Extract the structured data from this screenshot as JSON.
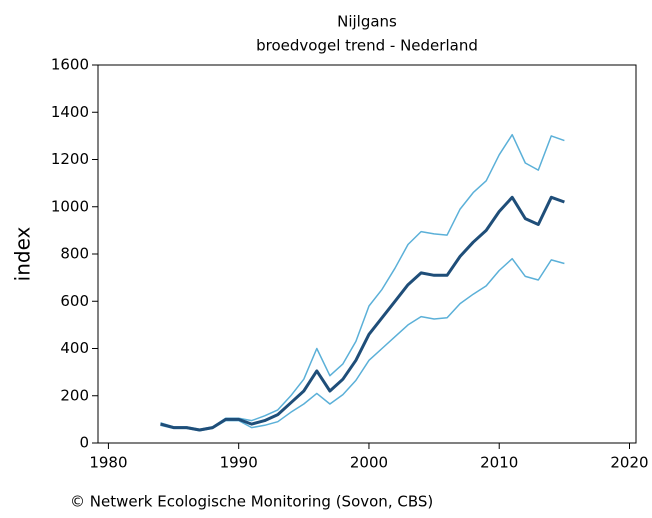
{
  "chart_data": {
    "type": "line",
    "title": "Nijlgans",
    "subtitle": "broedvogel trend - Nederland",
    "y_label": "index",
    "footer": "© Netwerk Ecologische Monitoring (Sovon, CBS)",
    "x": [
      1984,
      1985,
      1986,
      1987,
      1988,
      1989,
      1990,
      1991,
      1992,
      1993,
      1994,
      1995,
      1996,
      1997,
      1998,
      1999,
      2000,
      2001,
      2002,
      2003,
      2004,
      2005,
      2006,
      2007,
      2008,
      2009,
      2010,
      2011,
      2012,
      2013,
      2014,
      2015
    ],
    "series": [
      {
        "color": "#5bb0d8",
        "values": [
          85,
          68,
          68,
          58,
          68,
          105,
          105,
          95,
          115,
          140,
          200,
          270,
          400,
          285,
          335,
          430,
          580,
          650,
          740,
          840,
          895,
          885,
          880,
          990,
          1060,
          1110,
          1220,
          1305,
          1185,
          1155,
          1300,
          1280
        ]
      },
      {
        "color": "#5bb0d8",
        "values": [
          75,
          62,
          62,
          52,
          62,
          95,
          95,
          65,
          75,
          90,
          130,
          165,
          210,
          165,
          205,
          265,
          350,
          400,
          450,
          500,
          535,
          525,
          530,
          590,
          630,
          665,
          730,
          780,
          705,
          690,
          775,
          760
        ]
      },
      {
        "color": "#1f4e79",
        "values": [
          80,
          65,
          65,
          55,
          65,
          100,
          100,
          80,
          95,
          120,
          170,
          220,
          305,
          220,
          270,
          350,
          460,
          530,
          600,
          670,
          720,
          710,
          710,
          790,
          850,
          900,
          980,
          1040,
          950,
          925,
          1040,
          1020
        ]
      }
    ],
    "xlim": [
      1979.2,
      2020.5
    ],
    "xticks": [
      1980,
      1990,
      2000,
      2010,
      2020
    ],
    "ylim": [
      0,
      1600
    ],
    "yticks": [
      0,
      200,
      400,
      600,
      800,
      1000,
      1200,
      1400,
      1600
    ]
  }
}
